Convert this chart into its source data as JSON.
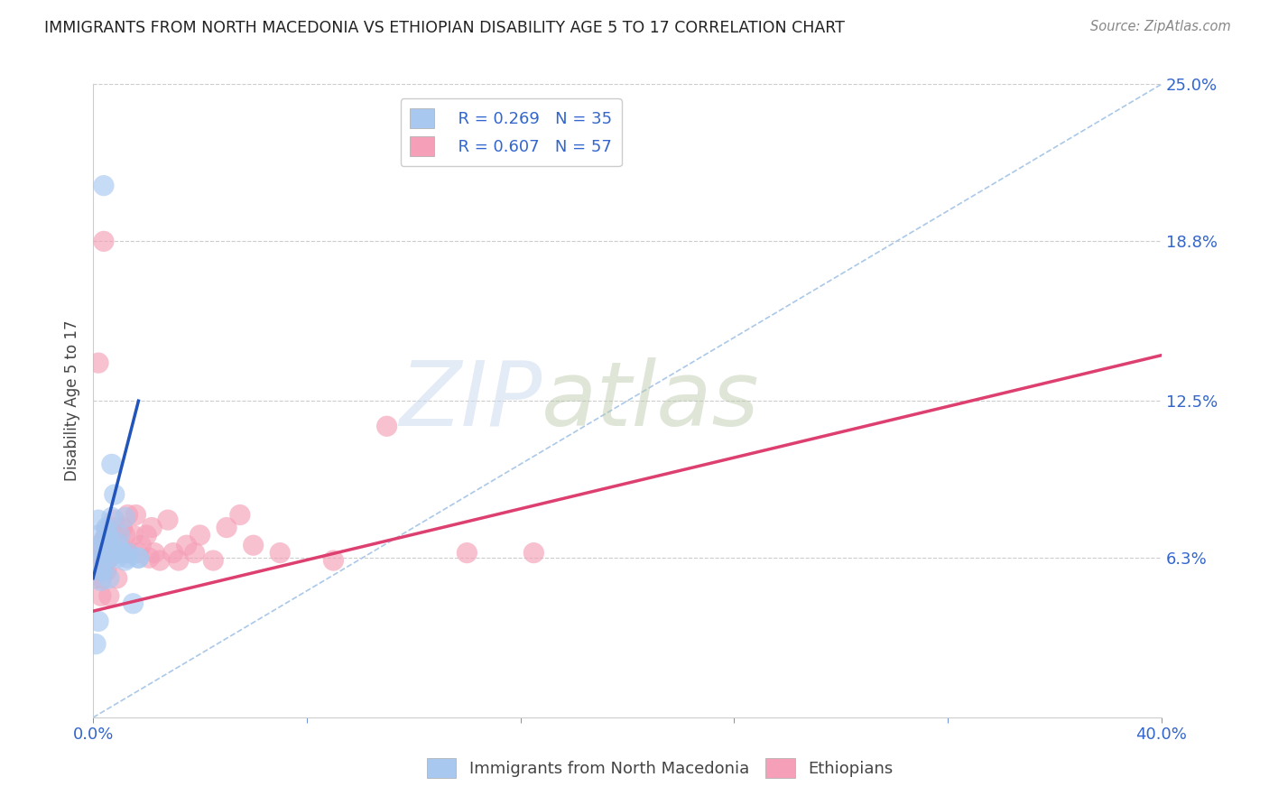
{
  "title": "IMMIGRANTS FROM NORTH MACEDONIA VS ETHIOPIAN DISABILITY AGE 5 TO 17 CORRELATION CHART",
  "source": "Source: ZipAtlas.com",
  "ylabel": "Disability Age 5 to 17",
  "xlim": [
    0.0,
    0.4
  ],
  "ylim": [
    0.0,
    0.25
  ],
  "ytick_labels_right": [
    "25.0%",
    "18.8%",
    "12.5%",
    "6.3%",
    ""
  ],
  "ytick_vals_right": [
    0.25,
    0.188,
    0.125,
    0.063,
    0.0
  ],
  "legend1_r": "R = 0.269",
  "legend1_n": "N = 35",
  "legend2_r": "R = 0.607",
  "legend2_n": "N = 57",
  "watermark_zip": "ZIP",
  "watermark_atlas": "atlas",
  "blue_color": "#a8c8f0",
  "blue_line_color": "#2255bb",
  "pink_color": "#f5a0b8",
  "pink_line_color": "#dd4070",
  "grey_dash_color": "#aac8e8",
  "blue_scatter_x": [
    0.001,
    0.002,
    0.002,
    0.003,
    0.003,
    0.004,
    0.004,
    0.005,
    0.005,
    0.005,
    0.006,
    0.006,
    0.006,
    0.007,
    0.007,
    0.008,
    0.008,
    0.009,
    0.009,
    0.01,
    0.011,
    0.011,
    0.012,
    0.012,
    0.013,
    0.015,
    0.017,
    0.001,
    0.002,
    0.003,
    0.004,
    0.007,
    0.013,
    0.017,
    0.003
  ],
  "blue_scatter_y": [
    0.067,
    0.078,
    0.072,
    0.065,
    0.061,
    0.058,
    0.07,
    0.074,
    0.065,
    0.075,
    0.063,
    0.055,
    0.071,
    0.068,
    0.079,
    0.065,
    0.088,
    0.063,
    0.069,
    0.072,
    0.065,
    0.065,
    0.062,
    0.079,
    0.063,
    0.045,
    0.063,
    0.029,
    0.038,
    0.058,
    0.21,
    0.1,
    0.065,
    0.063,
    0.054
  ],
  "pink_scatter_x": [
    0.001,
    0.001,
    0.002,
    0.002,
    0.002,
    0.003,
    0.003,
    0.003,
    0.003,
    0.004,
    0.004,
    0.004,
    0.004,
    0.005,
    0.005,
    0.005,
    0.006,
    0.006,
    0.007,
    0.007,
    0.008,
    0.008,
    0.009,
    0.009,
    0.009,
    0.01,
    0.011,
    0.012,
    0.012,
    0.013,
    0.013,
    0.015,
    0.016,
    0.017,
    0.018,
    0.02,
    0.021,
    0.022,
    0.023,
    0.025,
    0.028,
    0.03,
    0.032,
    0.035,
    0.038,
    0.04,
    0.045,
    0.05,
    0.055,
    0.06,
    0.07,
    0.09,
    0.11,
    0.14,
    0.165,
    0.002,
    0.004
  ],
  "pink_scatter_y": [
    0.055,
    0.063,
    0.058,
    0.062,
    0.065,
    0.055,
    0.048,
    0.06,
    0.068,
    0.063,
    0.07,
    0.058,
    0.065,
    0.058,
    0.062,
    0.072,
    0.048,
    0.063,
    0.075,
    0.068,
    0.078,
    0.07,
    0.065,
    0.072,
    0.055,
    0.068,
    0.075,
    0.065,
    0.072,
    0.08,
    0.065,
    0.072,
    0.08,
    0.065,
    0.068,
    0.072,
    0.063,
    0.075,
    0.065,
    0.062,
    0.078,
    0.065,
    0.062,
    0.068,
    0.065,
    0.072,
    0.062,
    0.075,
    0.08,
    0.068,
    0.065,
    0.062,
    0.115,
    0.065,
    0.065,
    0.14,
    0.188
  ],
  "blue_trend_x": [
    0.0,
    0.017
  ],
  "blue_trend_y": [
    0.055,
    0.125
  ],
  "pink_trend_x": [
    0.0,
    0.4
  ],
  "pink_trend_y": [
    0.042,
    0.143
  ],
  "grey_trend_x": [
    0.0,
    0.4
  ],
  "grey_trend_y": [
    0.0,
    0.25
  ],
  "background_color": "#ffffff",
  "grid_color": "#cccccc"
}
